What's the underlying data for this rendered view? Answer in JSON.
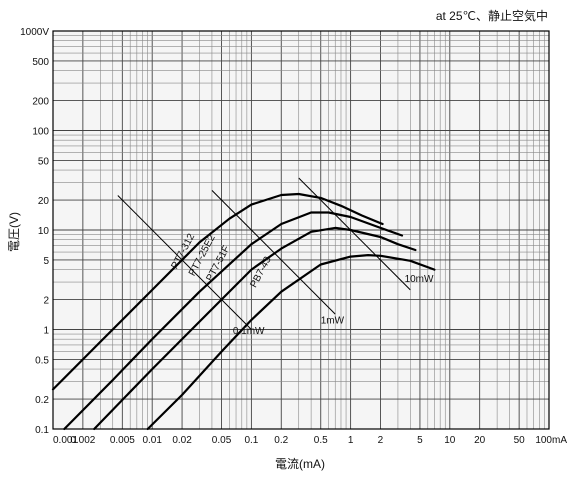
{
  "chart_data": {
    "type": "line",
    "note": "at 25℃、静止空気中",
    "xlabel": "電流(mA)",
    "ylabel": "電圧(V)",
    "xscale": "log",
    "yscale": "log",
    "xlim": [
      0.001,
      100
    ],
    "ylim": [
      0.1,
      1000
    ],
    "grid": true,
    "x_ticks": [
      {
        "v": 0.001,
        "label": "0.001"
      },
      {
        "v": 0.002,
        "label": "0.002"
      },
      {
        "v": 0.005,
        "label": "0.005"
      },
      {
        "v": 0.01,
        "label": "0.01"
      },
      {
        "v": 0.02,
        "label": "0.02"
      },
      {
        "v": 0.05,
        "label": "0.05"
      },
      {
        "v": 0.1,
        "label": "0.1"
      },
      {
        "v": 0.2,
        "label": "0.2"
      },
      {
        "v": 0.5,
        "label": "0.5"
      },
      {
        "v": 1,
        "label": "1"
      },
      {
        "v": 2,
        "label": "2"
      },
      {
        "v": 5,
        "label": "5"
      },
      {
        "v": 10,
        "label": "10"
      },
      {
        "v": 20,
        "label": "20"
      },
      {
        "v": 50,
        "label": "50"
      },
      {
        "v": 100,
        "label": "100mA"
      }
    ],
    "y_ticks": [
      {
        "v": 1000,
        "label": "1000V"
      },
      {
        "v": 500,
        "label": "500"
      },
      {
        "v": 200,
        "label": "200"
      },
      {
        "v": 100,
        "label": "100"
      },
      {
        "v": 50,
        "label": "50"
      },
      {
        "v": 20,
        "label": "20"
      },
      {
        "v": 10,
        "label": "10"
      },
      {
        "v": 5,
        "label": "5"
      },
      {
        "v": 2,
        "label": "2"
      },
      {
        "v": 1,
        "label": "1"
      },
      {
        "v": 0.5,
        "label": "0.5"
      },
      {
        "v": 0.2,
        "label": "0.2"
      },
      {
        "v": 0.1,
        "label": "0.1"
      }
    ],
    "series": [
      {
        "name": "PT7-312",
        "points": [
          [
            0.001,
            0.25
          ],
          [
            0.003,
            0.75
          ],
          [
            0.01,
            2.5
          ],
          [
            0.03,
            7.5
          ],
          [
            0.06,
            13
          ],
          [
            0.1,
            18
          ],
          [
            0.2,
            22.5
          ],
          [
            0.3,
            23
          ],
          [
            0.5,
            21
          ],
          [
            0.8,
            17.5
          ],
          [
            1.3,
            14
          ],
          [
            2.1,
            11.5
          ]
        ]
      },
      {
        "name": "PT7-25E2",
        "points": [
          [
            0.0013,
            0.1
          ],
          [
            0.004,
            0.31
          ],
          [
            0.01,
            0.8
          ],
          [
            0.03,
            2.4
          ],
          [
            0.1,
            7.2
          ],
          [
            0.2,
            11.5
          ],
          [
            0.4,
            15
          ],
          [
            0.6,
            15
          ],
          [
            1,
            13.5
          ],
          [
            2,
            10.5
          ],
          [
            3.3,
            8.8
          ]
        ]
      },
      {
        "name": "PT7-51F",
        "points": [
          [
            0.0026,
            0.1
          ],
          [
            0.01,
            0.4
          ],
          [
            0.03,
            1.2
          ],
          [
            0.1,
            4
          ],
          [
            0.2,
            6.5
          ],
          [
            0.4,
            9.6
          ],
          [
            0.7,
            10.5
          ],
          [
            1,
            10
          ],
          [
            2,
            8.5
          ],
          [
            3,
            7.2
          ],
          [
            4.5,
            6.3
          ]
        ]
      },
      {
        "name": "PB7-43",
        "points": [
          [
            0.009,
            0.1
          ],
          [
            0.02,
            0.22
          ],
          [
            0.05,
            0.6
          ],
          [
            0.1,
            1.25
          ],
          [
            0.2,
            2.4
          ],
          [
            0.5,
            4.5
          ],
          [
            1,
            5.4
          ],
          [
            1.5,
            5.6
          ],
          [
            2,
            5.5
          ],
          [
            4,
            4.9
          ],
          [
            7,
            4
          ]
        ]
      }
    ],
    "power_lines": [
      {
        "name": "0.1mW",
        "label": "0.1mW"
      },
      {
        "name": "1mW",
        "label": "1mW"
      },
      {
        "name": "10mW",
        "label": "10mW"
      }
    ]
  }
}
